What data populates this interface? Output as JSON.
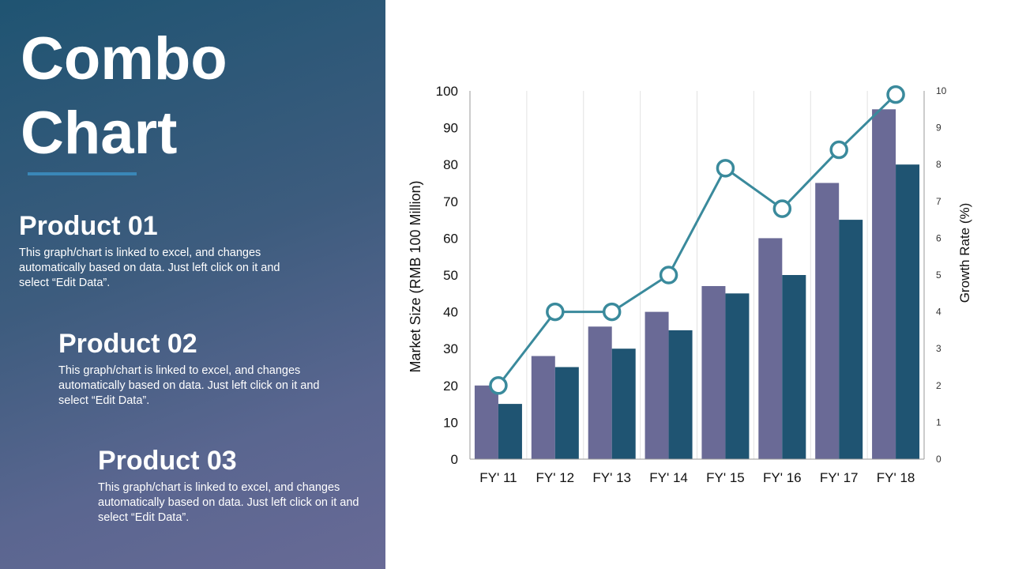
{
  "slide": {
    "title": "Combo\nChart"
  },
  "products": [
    {
      "heading": "Product 01",
      "description": "This graph/chart is linked to excel, and changes automatically based on data. Just left click on it and select “Edit Data”."
    },
    {
      "heading": "Product 02",
      "description": "This graph/chart is linked to excel, and changes automatically based on data. Just left click on it and select “Edit Data”."
    },
    {
      "heading": "Product 03",
      "description": "This graph/chart is linked to excel, and changes automatically based on data. Just left click on it and select “Edit Data”."
    }
  ],
  "colors": {
    "panel_top": "#1f5472",
    "panel_bottom": "#686a96",
    "accent_rule": "#3a87b8",
    "series_1": "#6a6a96",
    "series_2": "#1f5472",
    "growth_line": "#3a8a9c"
  },
  "chart_data": {
    "type": "combo",
    "categories": [
      "FY' 11",
      "FY' 12",
      "FY' 13",
      "FY' 14",
      "FY' 15",
      "FY' 16",
      "FY' 17",
      "FY' 18"
    ],
    "series": [
      {
        "type": "bar",
        "axis": "left",
        "values": [
          20,
          28,
          36,
          40,
          47,
          60,
          75,
          95
        ]
      },
      {
        "type": "bar",
        "axis": "left",
        "values": [
          15,
          25,
          30,
          35,
          45,
          50,
          65,
          80
        ]
      },
      {
        "type": "line",
        "axis": "right",
        "values": [
          2,
          4,
          4,
          5,
          7.9,
          6.8,
          8.4,
          9.9
        ]
      }
    ],
    "ylabel": "Market Size  (RMB 100 Million)",
    "y2label": "Growth Rate (%)",
    "ylim": [
      0,
      100
    ],
    "y2lim": [
      0,
      10
    ],
    "yticks": [
      0,
      10,
      20,
      30,
      40,
      50,
      60,
      70,
      80,
      90,
      100
    ],
    "y2ticks": [
      0,
      1,
      2,
      3,
      4,
      5,
      6,
      7,
      8,
      9,
      10
    ],
    "grid": "vertical",
    "legend": "none"
  }
}
